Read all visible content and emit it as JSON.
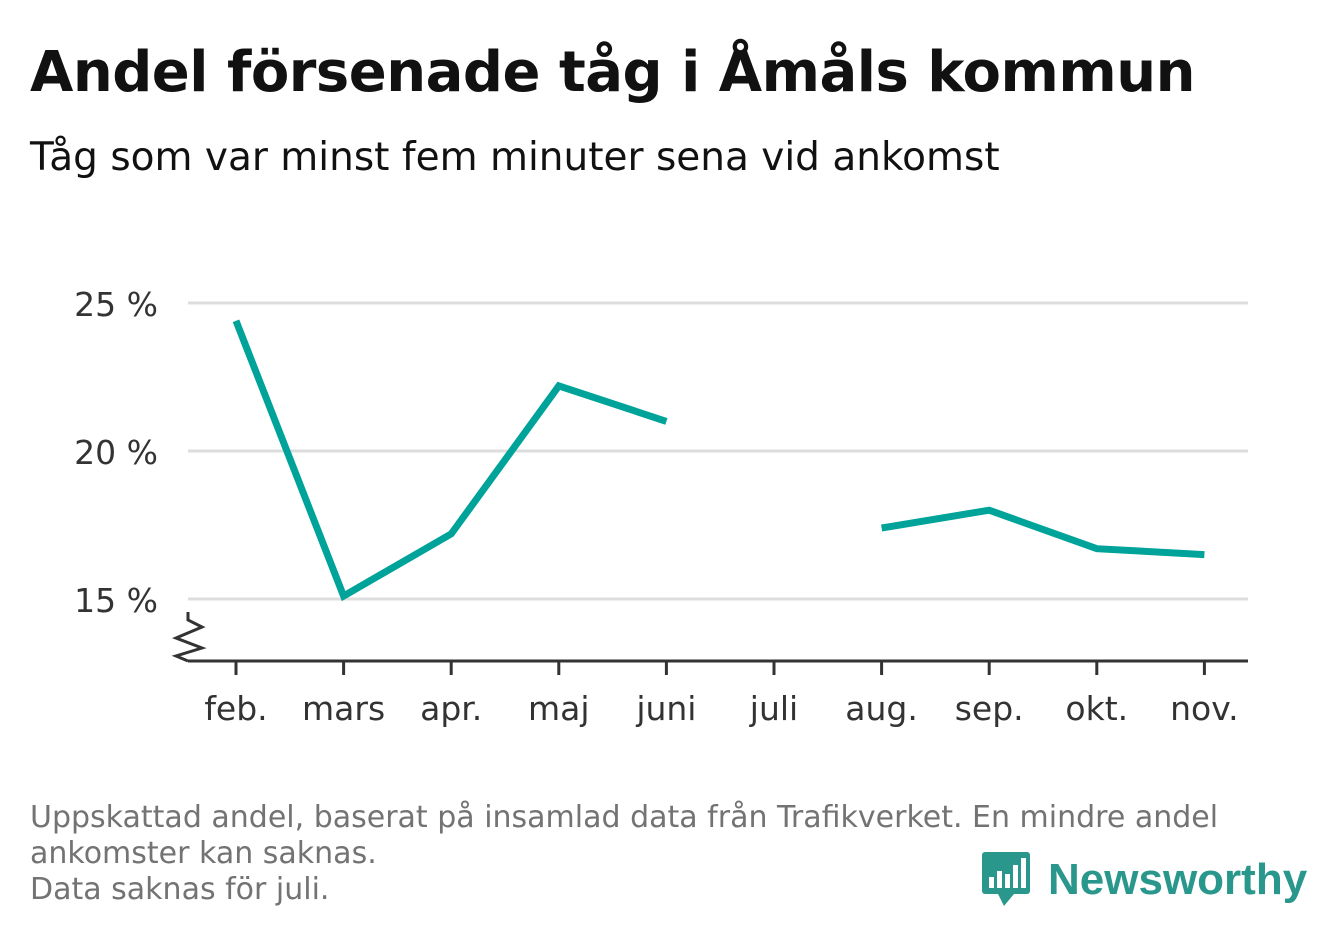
{
  "chart_data": {
    "type": "line",
    "title": "Andel försenade tåg i Åmåls kommun",
    "subtitle": "Tåg som var minst fem minuter sena vid ankomst",
    "categories": [
      "feb.",
      "mars",
      "apr.",
      "maj",
      "juni",
      "juli",
      "aug.",
      "sep.",
      "okt.",
      "nov."
    ],
    "series": [
      {
        "values": [
          24.4,
          15.1,
          17.2,
          22.2,
          21.0,
          null,
          17.4,
          18.0,
          16.7,
          16.5
        ]
      }
    ],
    "y_ticks": [
      15,
      20,
      25
    ],
    "y_tick_labels": [
      "15 %",
      "20 %",
      "25 %"
    ],
    "ylim": [
      12.9,
      25.2
    ],
    "y_axis_break": true,
    "grid": true,
    "line_color": "#00a39a",
    "grid_color": "#dddddd",
    "axis_color": "#333333"
  },
  "footer": {
    "note_line1": "Uppskattad andel, baserat på insamlad data från Trafikverket. En mindre andel ankomster kan saknas.",
    "note_line2": "Data saknas för juli.",
    "brand": "Newsworthy",
    "brand_color": "#2a978c"
  }
}
